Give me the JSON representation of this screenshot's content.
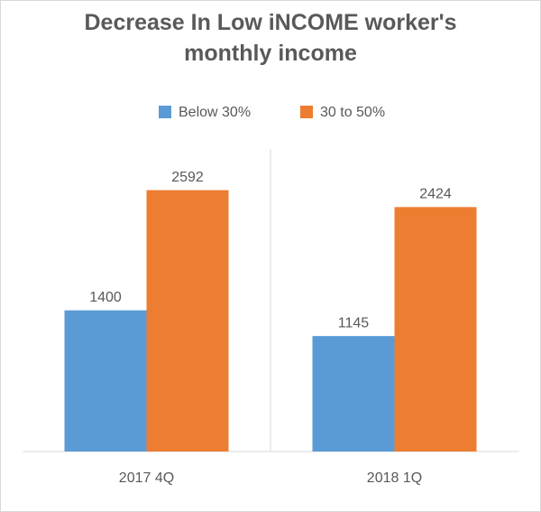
{
  "chart_data": {
    "type": "bar",
    "title": "Decrease In Low iNCOME worker's monthly income",
    "categories": [
      "2017 4Q",
      "2018 1Q"
    ],
    "series": [
      {
        "name": "Below 30%",
        "color": "#5b9bd5",
        "values": [
          1400,
          1145
        ]
      },
      {
        "name": "30 to 50%",
        "color": "#ed7d31",
        "values": [
          2592,
          2424
        ]
      }
    ],
    "ylim": [
      0,
      3000
    ],
    "legend": "top",
    "data_labels": true
  }
}
